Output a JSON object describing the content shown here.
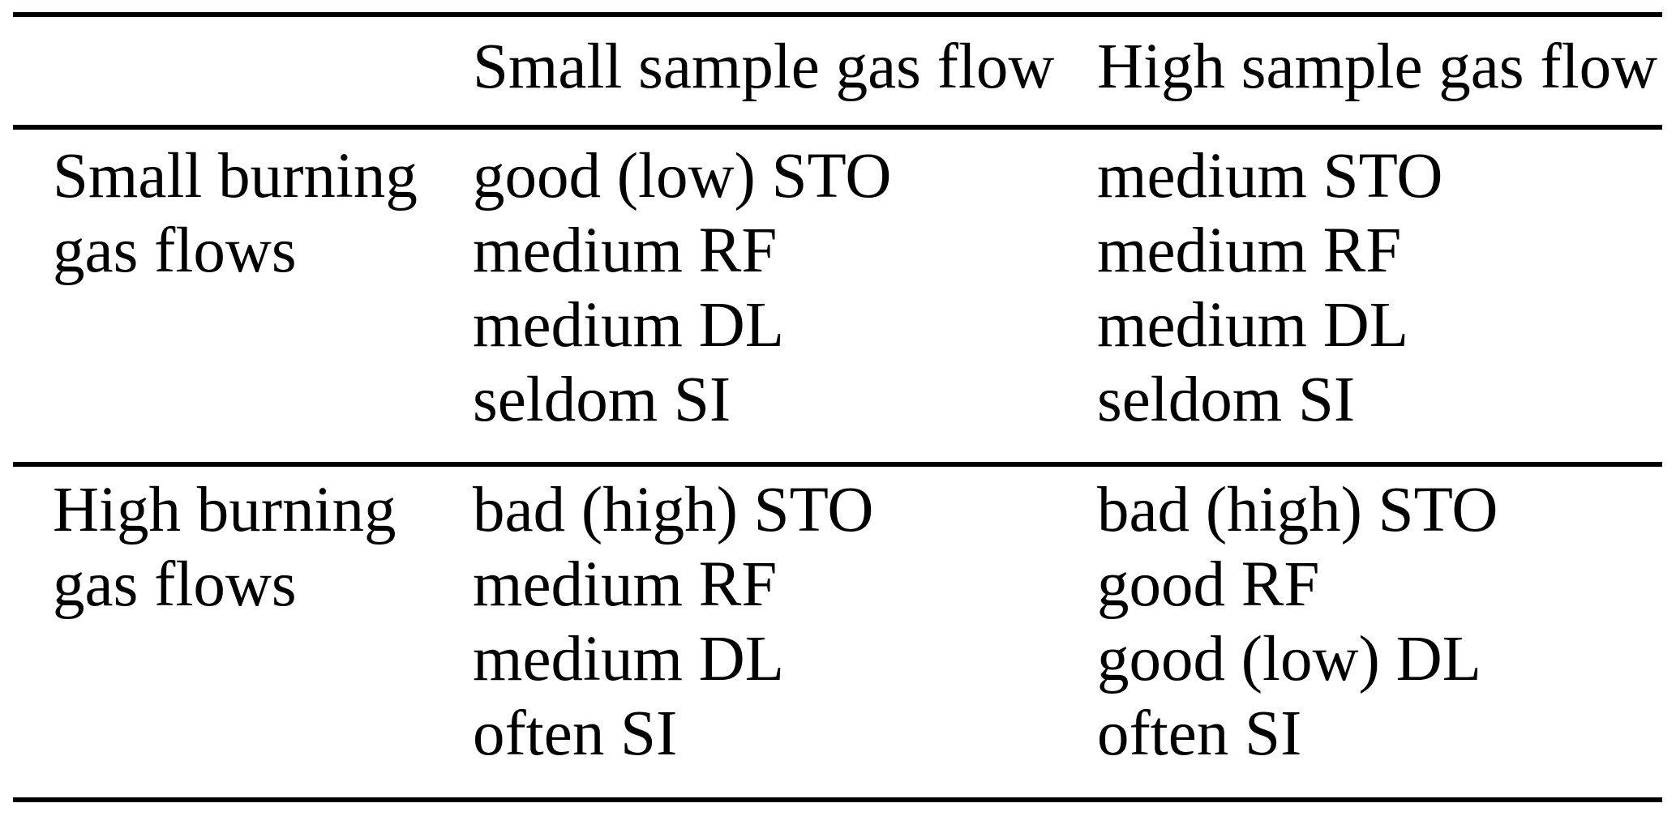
{
  "table": {
    "columns": [
      "",
      "Small sample gas flow",
      "High sample gas flow"
    ],
    "rows": [
      {
        "label": [
          "Small burning",
          "gas flows"
        ],
        "cells": [
          {
            "lines": [
              "good (low) STO",
              "medium RF",
              "medium DL",
              "seldom SI"
            ]
          },
          {
            "lines": [
              "medium STO",
              "medium RF",
              "medium DL",
              "seldom SI"
            ]
          }
        ]
      },
      {
        "label": [
          "High burning",
          "gas flows"
        ],
        "cells": [
          {
            "lines": [
              "bad (high) STO",
              "medium RF",
              "medium DL",
              "often SI"
            ]
          },
          {
            "lines": [
              "bad (high) STO",
              "good RF",
              "good (low) DL",
              "often SI"
            ]
          }
        ]
      }
    ]
  },
  "chart_data": {
    "type": "table",
    "title": "",
    "columns": [
      "",
      "Small sample gas flow",
      "High sample gas flow"
    ],
    "rows": [
      [
        "Small burning gas flows",
        "good (low) STO; medium RF; medium DL; seldom SI",
        "medium STO; medium RF; medium DL; seldom SI"
      ],
      [
        "High burning gas flows",
        "bad (high) STO; medium RF; medium DL; often SI",
        "bad (high) STO; good RF; good (low) DL; often SI"
      ]
    ]
  },
  "colors": {
    "background": "#ffffff",
    "text": "#000000",
    "rule": "#000000"
  }
}
